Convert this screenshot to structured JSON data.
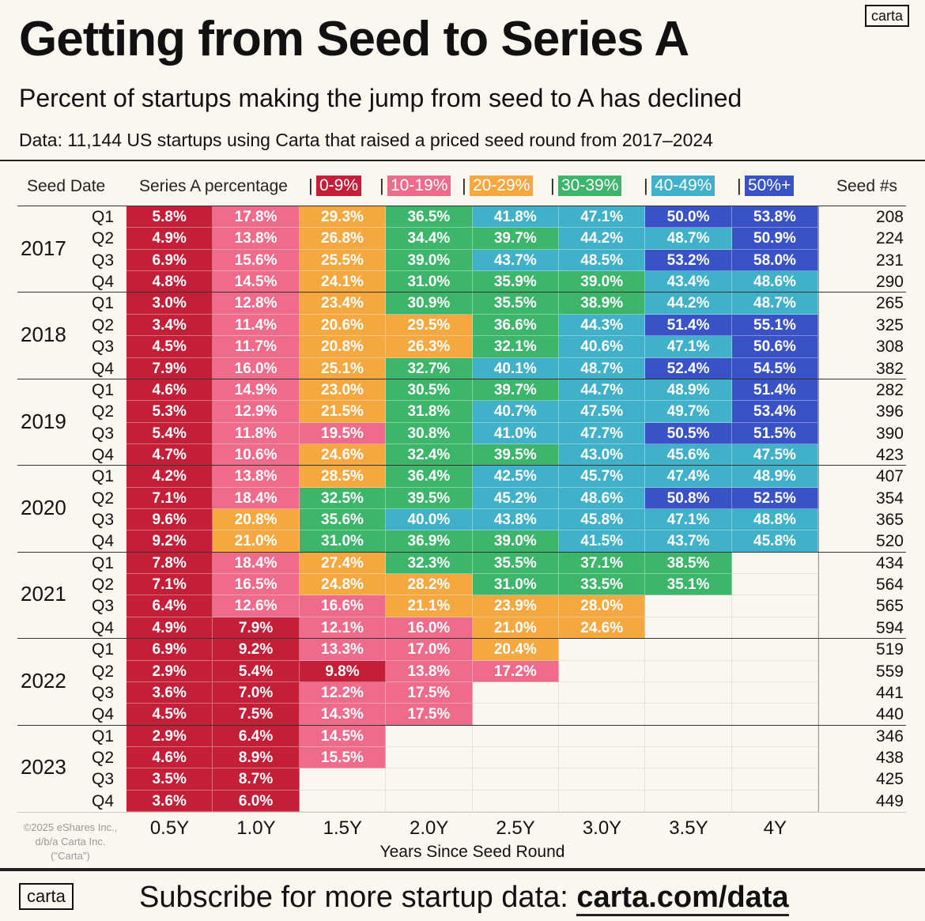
{
  "header": {
    "title": "Getting from Seed to Series A",
    "subtitle": "Percent of startups making the jump from seed to A has declined",
    "data_note": "Data: 11,144 US startups using Carta that raised a priced seed round from 2017–2024",
    "logo": "carta"
  },
  "footer": {
    "copyright": "©2025 eShares Inc., d/b/a Carta Inc. (\"Carta\")",
    "cta": "Subscribe for more startup data: ",
    "cta_link": "carta.com/data",
    "logo": "carta"
  },
  "chart_data": {
    "type": "heatmap",
    "title": "Getting from Seed to Series A",
    "row_header": "Seed Date",
    "value_header": "Series A percentage",
    "count_header": "Seed #s",
    "xlabel": "Years Since Seed Round",
    "columns": [
      "0.5Y",
      "1.0Y",
      "1.5Y",
      "2.0Y",
      "2.5Y",
      "3.0Y",
      "3.5Y",
      "4Y"
    ],
    "legend": [
      {
        "label": "0-9%",
        "min": 0,
        "color": "#c41f38"
      },
      {
        "label": "10-19%",
        "min": 10,
        "color": "#ee6b8b"
      },
      {
        "label": "20-29%",
        "min": 20,
        "color": "#f5a840"
      },
      {
        "label": "30-39%",
        "min": 30,
        "color": "#3db56b"
      },
      {
        "label": "40-49%",
        "min": 40,
        "color": "#40b1c8"
      },
      {
        "label": "50%+",
        "min": 50,
        "color": "#3953c6"
      }
    ],
    "rows": [
      {
        "year": "2017",
        "q": "Q1",
        "seed": "208",
        "values": [
          5.8,
          17.8,
          29.3,
          36.5,
          41.8,
          47.1,
          50.0,
          53.8
        ]
      },
      {
        "year": "2017",
        "q": "Q2",
        "seed": "224",
        "values": [
          4.9,
          13.8,
          26.8,
          34.4,
          39.7,
          44.2,
          48.7,
          50.9
        ]
      },
      {
        "year": "2017",
        "q": "Q3",
        "seed": "231",
        "values": [
          6.9,
          15.6,
          25.5,
          39.0,
          43.7,
          48.5,
          53.2,
          58.0
        ]
      },
      {
        "year": "2017",
        "q": "Q4",
        "seed": "290",
        "values": [
          4.8,
          14.5,
          24.1,
          31.0,
          35.9,
          39.0,
          43.4,
          48.6
        ]
      },
      {
        "year": "2018",
        "q": "Q1",
        "seed": "265",
        "values": [
          3.0,
          12.8,
          23.4,
          30.9,
          35.5,
          38.9,
          44.2,
          48.7
        ]
      },
      {
        "year": "2018",
        "q": "Q2",
        "seed": "325",
        "values": [
          3.4,
          11.4,
          20.6,
          29.5,
          36.6,
          44.3,
          51.4,
          55.1
        ]
      },
      {
        "year": "2018",
        "q": "Q3",
        "seed": "308",
        "values": [
          4.5,
          11.7,
          20.8,
          26.3,
          32.1,
          40.6,
          47.1,
          50.6
        ]
      },
      {
        "year": "2018",
        "q": "Q4",
        "seed": "382",
        "values": [
          7.9,
          16.0,
          25.1,
          32.7,
          40.1,
          48.7,
          52.4,
          54.5
        ]
      },
      {
        "year": "2019",
        "q": "Q1",
        "seed": "282",
        "values": [
          4.6,
          14.9,
          23.0,
          30.5,
          39.7,
          44.7,
          48.9,
          51.4
        ]
      },
      {
        "year": "2019",
        "q": "Q2",
        "seed": "396",
        "values": [
          5.3,
          12.9,
          21.5,
          31.8,
          40.7,
          47.5,
          49.7,
          53.4
        ]
      },
      {
        "year": "2019",
        "q": "Q3",
        "seed": "390",
        "values": [
          5.4,
          11.8,
          19.5,
          30.8,
          41.0,
          47.7,
          50.5,
          51.5
        ]
      },
      {
        "year": "2019",
        "q": "Q4",
        "seed": "423",
        "values": [
          4.7,
          10.6,
          24.6,
          32.4,
          39.5,
          43.0,
          45.6,
          47.5
        ]
      },
      {
        "year": "2020",
        "q": "Q1",
        "seed": "407",
        "values": [
          4.2,
          13.8,
          28.5,
          36.4,
          42.5,
          45.7,
          47.4,
          48.9
        ]
      },
      {
        "year": "2020",
        "q": "Q2",
        "seed": "354",
        "values": [
          7.1,
          18.4,
          32.5,
          39.5,
          45.2,
          48.6,
          50.8,
          52.5
        ]
      },
      {
        "year": "2020",
        "q": "Q3",
        "seed": "365",
        "values": [
          9.6,
          20.8,
          35.6,
          40.0,
          43.8,
          45.8,
          47.1,
          48.8
        ]
      },
      {
        "year": "2020",
        "q": "Q4",
        "seed": "520",
        "values": [
          9.2,
          21.0,
          31.0,
          36.9,
          39.0,
          41.5,
          43.7,
          45.8
        ]
      },
      {
        "year": "2021",
        "q": "Q1",
        "seed": "434",
        "values": [
          7.8,
          18.4,
          27.4,
          32.3,
          35.5,
          37.1,
          38.5,
          null
        ]
      },
      {
        "year": "2021",
        "q": "Q2",
        "seed": "564",
        "values": [
          7.1,
          16.5,
          24.8,
          28.2,
          31.0,
          33.5,
          35.1,
          null
        ]
      },
      {
        "year": "2021",
        "q": "Q3",
        "seed": "565",
        "values": [
          6.4,
          12.6,
          16.6,
          21.1,
          23.9,
          28.0,
          null,
          null
        ]
      },
      {
        "year": "2021",
        "q": "Q4",
        "seed": "594",
        "values": [
          4.9,
          7.9,
          12.1,
          16.0,
          21.0,
          24.6,
          null,
          null
        ]
      },
      {
        "year": "2022",
        "q": "Q1",
        "seed": "519",
        "values": [
          6.9,
          9.2,
          13.3,
          17.0,
          20.4,
          null,
          null,
          null
        ]
      },
      {
        "year": "2022",
        "q": "Q2",
        "seed": "559",
        "values": [
          2.9,
          5.4,
          9.8,
          13.8,
          17.2,
          null,
          null,
          null
        ]
      },
      {
        "year": "2022",
        "q": "Q3",
        "seed": "441",
        "values": [
          3.6,
          7.0,
          12.2,
          17.5,
          null,
          null,
          null,
          null
        ]
      },
      {
        "year": "2022",
        "q": "Q4",
        "seed": "440",
        "values": [
          4.5,
          7.5,
          14.3,
          17.5,
          null,
          null,
          null,
          null
        ]
      },
      {
        "year": "2023",
        "q": "Q1",
        "seed": "346",
        "values": [
          2.9,
          6.4,
          14.5,
          null,
          null,
          null,
          null,
          null
        ]
      },
      {
        "year": "2023",
        "q": "Q2",
        "seed": "438",
        "values": [
          4.6,
          8.9,
          15.5,
          null,
          null,
          null,
          null,
          null
        ]
      },
      {
        "year": "2023",
        "q": "Q3",
        "seed": "425",
        "values": [
          3.5,
          8.7,
          null,
          null,
          null,
          null,
          null,
          null
        ]
      },
      {
        "year": "2023",
        "q": "Q4",
        "seed": "449",
        "values": [
          3.6,
          6.0,
          null,
          null,
          null,
          null,
          null,
          null
        ]
      }
    ]
  }
}
